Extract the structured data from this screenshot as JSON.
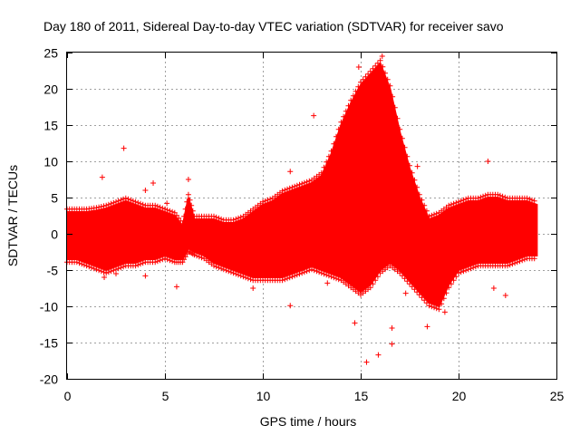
{
  "chart_data": {
    "type": "scatter",
    "title": "Day 180 of 2011, Sidereal Day-to-day VTEC variation (SDTVAR) for receiver savo",
    "xlabel": "GPS time / hours",
    "ylabel": "SDTVAR / TECUs",
    "xlim": [
      0,
      25
    ],
    "ylim": [
      -20,
      25
    ],
    "xticks": [
      0,
      5,
      10,
      15,
      20,
      25
    ],
    "yticks": [
      -20,
      -15,
      -10,
      -5,
      0,
      5,
      10,
      15,
      20,
      25
    ],
    "xtick_labels": [
      "0",
      "5",
      "10",
      "15",
      "20",
      "25"
    ],
    "ytick_labels": [
      "-20",
      "-15",
      "-10",
      "-5",
      "0",
      "5",
      "10",
      "15",
      "20",
      "25"
    ],
    "grid": true,
    "marker": "+",
    "color": "#ff0000",
    "series": [
      {
        "name": "SDTVAR",
        "envelope": {
          "x": [
            0.0,
            0.5,
            1.0,
            1.5,
            2.0,
            2.5,
            3.0,
            3.5,
            4.0,
            4.5,
            5.0,
            5.5,
            5.9,
            6.2,
            6.5,
            7.0,
            7.5,
            8.0,
            8.5,
            9.0,
            9.5,
            10.0,
            10.5,
            11.0,
            11.5,
            12.0,
            12.5,
            13.0,
            13.5,
            14.0,
            14.5,
            15.0,
            15.5,
            16.0,
            16.5,
            17.0,
            17.5,
            18.0,
            18.5,
            19.0,
            19.5,
            20.0,
            20.5,
            21.0,
            21.5,
            22.0,
            22.5,
            23.0,
            23.5,
            24.0
          ],
          "upper": [
            3.0,
            3.0,
            3.0,
            3.2,
            3.5,
            4.0,
            4.5,
            4.0,
            3.5,
            3.5,
            3.0,
            2.5,
            1.0,
            5.0,
            2.0,
            2.0,
            2.0,
            1.5,
            1.5,
            2.0,
            3.0,
            4.0,
            4.5,
            5.5,
            6.0,
            6.5,
            7.0,
            8.0,
            11.0,
            15.0,
            18.0,
            20.5,
            22.0,
            23.5,
            20.0,
            14.0,
            9.0,
            5.0,
            2.0,
            2.5,
            3.5,
            4.0,
            4.5,
            4.5,
            5.0,
            5.0,
            4.5,
            4.5,
            4.5,
            4.0
          ],
          "lower": [
            -3.5,
            -3.5,
            -4.0,
            -4.5,
            -5.0,
            -4.5,
            -4.0,
            -4.0,
            -3.5,
            -3.5,
            -3.0,
            -3.5,
            -3.5,
            -2.0,
            -2.5,
            -3.0,
            -4.0,
            -4.5,
            -5.0,
            -5.5,
            -6.0,
            -6.0,
            -6.0,
            -6.0,
            -5.5,
            -5.0,
            -4.5,
            -5.0,
            -5.5,
            -6.0,
            -7.0,
            -8.0,
            -7.0,
            -5.0,
            -4.0,
            -5.0,
            -6.5,
            -8.0,
            -9.5,
            -10.0,
            -7.0,
            -5.0,
            -4.5,
            -4.0,
            -4.0,
            -4.0,
            -4.0,
            -3.5,
            -3.0,
            -3.0
          ]
        },
        "outliers": [
          {
            "x": 1.8,
            "y": 7.8
          },
          {
            "x": 2.9,
            "y": 11.8
          },
          {
            "x": 1.9,
            "y": -6.0
          },
          {
            "x": 4.0,
            "y": 6.0
          },
          {
            "x": 4.0,
            "y": -5.8
          },
          {
            "x": 4.4,
            "y": 7.0
          },
          {
            "x": 5.6,
            "y": -7.3
          },
          {
            "x": 6.2,
            "y": 7.5
          },
          {
            "x": 11.4,
            "y": 8.6
          },
          {
            "x": 11.4,
            "y": -9.9
          },
          {
            "x": 14.7,
            "y": -12.3
          },
          {
            "x": 15.3,
            "y": -17.7
          },
          {
            "x": 15.9,
            "y": -16.7
          },
          {
            "x": 16.6,
            "y": -13.0
          },
          {
            "x": 16.6,
            "y": -15.2
          },
          {
            "x": 17.9,
            "y": 9.3
          },
          {
            "x": 18.4,
            "y": -12.8
          },
          {
            "x": 21.5,
            "y": 10.0
          },
          {
            "x": 21.8,
            "y": -7.5
          },
          {
            "x": 22.4,
            "y": -8.5
          },
          {
            "x": 9.5,
            "y": -7.5
          },
          {
            "x": 12.6,
            "y": 16.3
          },
          {
            "x": 14.9,
            "y": 23.0
          },
          {
            "x": 16.1,
            "y": 24.5
          },
          {
            "x": 13.3,
            "y": -6.8
          },
          {
            "x": 17.3,
            "y": -8.2
          },
          {
            "x": 19.3,
            "y": -10.8
          },
          {
            "x": 18.0,
            "y": -8.0
          },
          {
            "x": 2.5,
            "y": -5.5
          },
          {
            "x": 5.1,
            "y": 4.2
          }
        ]
      }
    ]
  }
}
